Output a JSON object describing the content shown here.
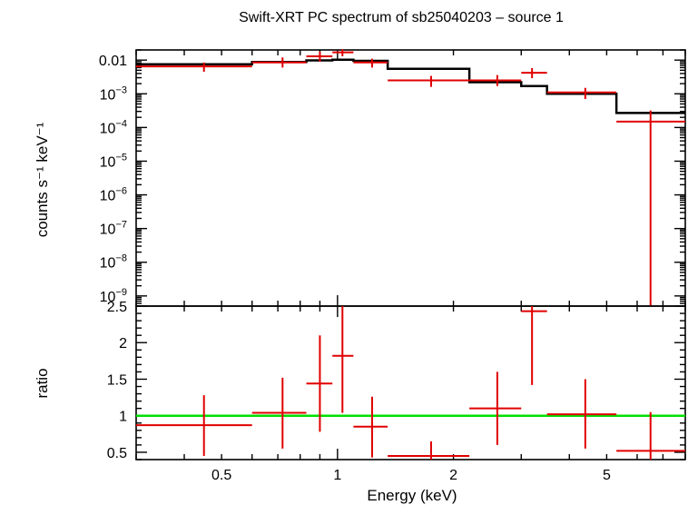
{
  "chart_data": [
    {
      "type": "scatter",
      "title": "Swift-XRT PC spectrum of sb25040203 – source 1",
      "xlabel": "Energy (keV)",
      "ylabel": "counts s⁻¹ keV⁻¹",
      "xscale": "log",
      "yscale": "log",
      "xlim": [
        0.3,
        8.0
      ],
      "ylim": [
        5e-10,
        0.02
      ],
      "y_ticks": [
        {
          "value": 0.01,
          "mant": "0.01",
          "exp": ""
        },
        {
          "value": 0.001,
          "mant": "10",
          "exp": "−3"
        },
        {
          "value": 0.0001,
          "mant": "10",
          "exp": "−4"
        },
        {
          "value": 1e-05,
          "mant": "10",
          "exp": "−5"
        },
        {
          "value": 1e-06,
          "mant": "10",
          "exp": "−6"
        },
        {
          "value": 1e-07,
          "mant": "10",
          "exp": "−7"
        },
        {
          "value": 1e-08,
          "mant": "10",
          "exp": "−8"
        },
        {
          "value": 1e-09,
          "mant": "10",
          "exp": "−9"
        }
      ],
      "data_color": "#e00000",
      "model_color": "#000000",
      "points": [
        {
          "x": 0.45,
          "xlo": 0.3,
          "xhi": 0.6,
          "y": 0.0065,
          "ylo": 0.0045,
          "yhi": 0.0085
        },
        {
          "x": 0.72,
          "xlo": 0.6,
          "xhi": 0.83,
          "y": 0.0085,
          "ylo": 0.006,
          "yhi": 0.012
        },
        {
          "x": 0.9,
          "xlo": 0.83,
          "xhi": 0.97,
          "y": 0.013,
          "ylo": 0.009,
          "yhi": 0.018
        },
        {
          "x": 1.03,
          "xlo": 0.97,
          "xhi": 1.1,
          "y": 0.017,
          "ylo": 0.013,
          "yhi": 0.021
        },
        {
          "x": 1.23,
          "xlo": 1.1,
          "xhi": 1.35,
          "y": 0.0085,
          "ylo": 0.006,
          "yhi": 0.011
        },
        {
          "x": 1.75,
          "xlo": 1.35,
          "xhi": 2.2,
          "y": 0.0025,
          "ylo": 0.0016,
          "yhi": 0.0034
        },
        {
          "x": 2.6,
          "xlo": 2.2,
          "xhi": 3.0,
          "y": 0.0025,
          "ylo": 0.0017,
          "yhi": 0.0036
        },
        {
          "x": 3.2,
          "xlo": 3.0,
          "xhi": 3.5,
          "y": 0.0042,
          "ylo": 0.0029,
          "yhi": 0.0058
        },
        {
          "x": 4.4,
          "xlo": 3.5,
          "xhi": 5.3,
          "y": 0.0011,
          "ylo": 0.0007,
          "yhi": 0.0015
        },
        {
          "x": 6.5,
          "xlo": 5.3,
          "xhi": 8.0,
          "y": 0.00015,
          "ylo": 5e-10,
          "yhi": 0.00032
        }
      ],
      "model_steps": [
        {
          "xlo": 0.3,
          "xhi": 0.6,
          "y": 0.0075
        },
        {
          "xlo": 0.6,
          "xhi": 0.83,
          "y": 0.0088
        },
        {
          "xlo": 0.83,
          "xhi": 0.97,
          "y": 0.0098
        },
        {
          "xlo": 0.97,
          "xhi": 1.1,
          "y": 0.0103
        },
        {
          "xlo": 1.1,
          "xhi": 1.35,
          "y": 0.0095
        },
        {
          "xlo": 1.35,
          "xhi": 2.2,
          "y": 0.0055
        },
        {
          "xlo": 2.2,
          "xhi": 3.0,
          "y": 0.0022
        },
        {
          "xlo": 3.0,
          "xhi": 3.5,
          "y": 0.0017
        },
        {
          "xlo": 3.5,
          "xhi": 5.3,
          "y": 0.001
        },
        {
          "xlo": 5.3,
          "xhi": 8.0,
          "y": 0.00027
        }
      ]
    },
    {
      "type": "scatter",
      "xlabel": "Energy (keV)",
      "ylabel": "ratio",
      "xscale": "log",
      "xlim": [
        0.3,
        8.0
      ],
      "ylim": [
        0.4,
        2.5
      ],
      "y_ticks": [
        0.5,
        1,
        1.5,
        2,
        2.5
      ],
      "x_ticks": [
        {
          "value": 0.5,
          "label": "0.5"
        },
        {
          "value": 1,
          "label": "1"
        },
        {
          "value": 2,
          "label": "2"
        },
        {
          "value": 5,
          "label": "5"
        }
      ],
      "reference_line": {
        "y": 1,
        "color": "#00e000"
      },
      "data_color": "#e00000",
      "points": [
        {
          "x": 0.45,
          "xlo": 0.3,
          "xhi": 0.6,
          "y": 0.87,
          "ylo": 0.45,
          "yhi": 1.28
        },
        {
          "x": 0.72,
          "xlo": 0.6,
          "xhi": 0.83,
          "y": 1.04,
          "ylo": 0.55,
          "yhi": 1.52
        },
        {
          "x": 0.9,
          "xlo": 0.83,
          "xhi": 0.97,
          "y": 1.44,
          "ylo": 0.78,
          "yhi": 2.1
        },
        {
          "x": 1.03,
          "xlo": 0.97,
          "xhi": 1.1,
          "y": 1.82,
          "ylo": 1.04,
          "yhi": 2.5
        },
        {
          "x": 1.23,
          "xlo": 1.1,
          "xhi": 1.35,
          "y": 0.85,
          "ylo": 0.43,
          "yhi": 1.26
        },
        {
          "x": 1.75,
          "xlo": 1.35,
          "xhi": 2.2,
          "y": 0.45,
          "ylo": 0.4,
          "yhi": 0.65
        },
        {
          "x": 2.6,
          "xlo": 2.2,
          "xhi": 3.0,
          "y": 1.1,
          "ylo": 0.6,
          "yhi": 1.6
        },
        {
          "x": 3.2,
          "xlo": 3.0,
          "xhi": 3.5,
          "y": 2.43,
          "ylo": 1.42,
          "yhi": 2.5
        },
        {
          "x": 4.4,
          "xlo": 3.5,
          "xhi": 5.3,
          "y": 1.02,
          "ylo": 0.55,
          "yhi": 1.5
        },
        {
          "x": 6.5,
          "xlo": 5.3,
          "xhi": 8.0,
          "y": 0.52,
          "ylo": 0.4,
          "yhi": 1.05
        }
      ]
    }
  ]
}
